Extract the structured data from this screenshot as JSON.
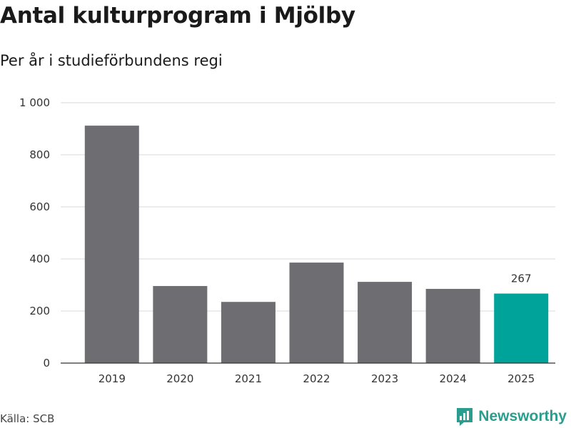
{
  "title": "Antal kulturprogram i Mjölby",
  "subtitle": "Per år i studieförbundens regi",
  "source": "Källa: SCB",
  "brand": {
    "name": "Newsworthy",
    "icon": "newsworthy-logo-icon",
    "color": "#2a9d8f"
  },
  "chart_data": {
    "type": "bar",
    "categories": [
      "2019",
      "2020",
      "2021",
      "2022",
      "2023",
      "2024",
      "2025"
    ],
    "values": [
      912,
      296,
      235,
      386,
      312,
      285,
      267
    ],
    "highlight_index": 6,
    "bar_color": "#6e6d72",
    "highlight_color": "#00a39a",
    "data_labels": [
      null,
      null,
      null,
      null,
      null,
      null,
      "267"
    ],
    "ylim": [
      0,
      1000
    ],
    "yticks": [
      0,
      200,
      400,
      600,
      800,
      1000
    ],
    "ytick_labels": [
      "0",
      "200",
      "400",
      "600",
      "800",
      "1 000"
    ],
    "grid": true
  }
}
